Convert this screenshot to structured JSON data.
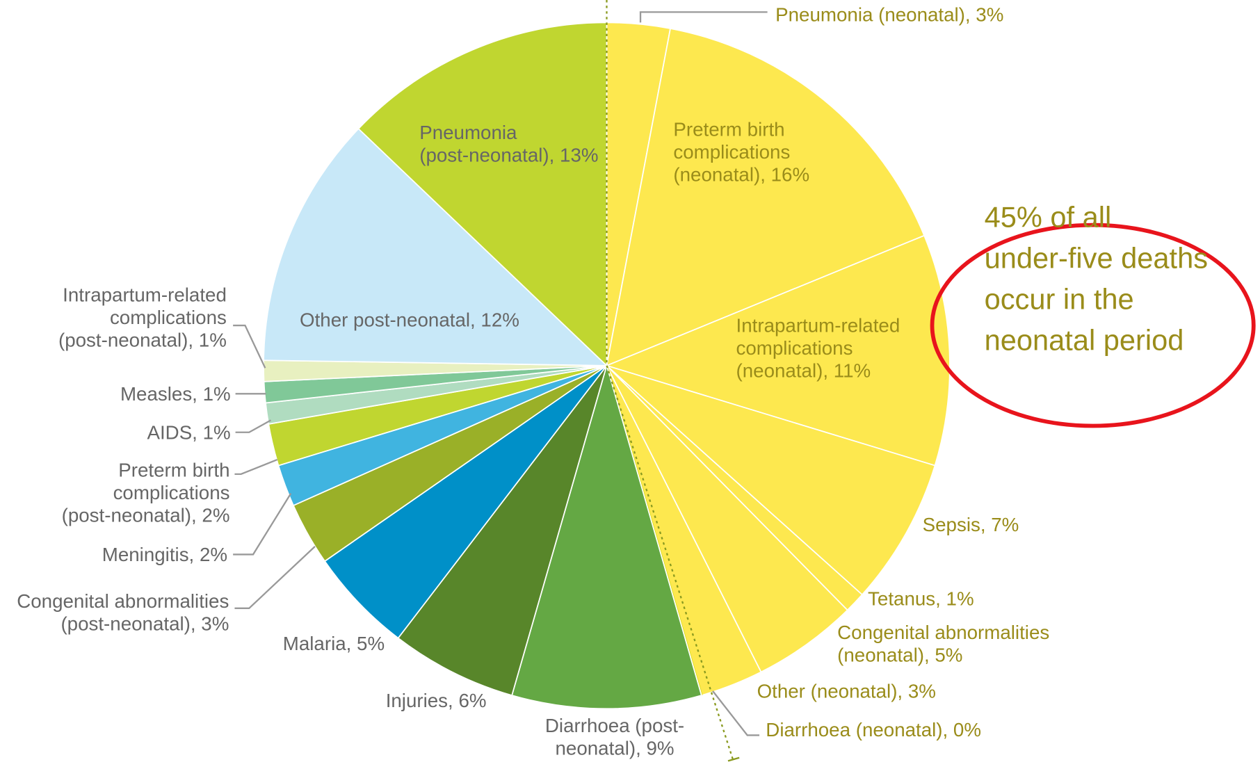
{
  "chart_data": {
    "type": "pie",
    "value_labels": [
      [
        "Pneumonia (neonatal), 3%"
      ],
      [
        "Preterm birth",
        "complications",
        "(neonatal), 16%"
      ],
      [
        "Intrapartum-related",
        "complications",
        "(neonatal), 11%"
      ],
      [
        "Sepsis, 7%"
      ],
      [
        "Tetanus, 1%"
      ],
      [
        "Congenital abnormalities",
        "(neonatal), 5%"
      ],
      [
        "Other (neonatal), 3%"
      ],
      [
        "Diarrhoea (neonatal), 0%"
      ],
      [
        "Diarrhoea (post-",
        "neonatal), 9%"
      ],
      [
        "Injuries, 6%"
      ],
      [
        "Malaria, 5%"
      ],
      [
        "Congenital abnormalities",
        "(post-neonatal), 3%"
      ],
      [
        "Meningitis, 2%"
      ],
      [
        "Preterm birth",
        "complications",
        "(post-neonatal), 2%"
      ],
      [
        "AIDS, 1%"
      ],
      [
        "Measles, 1%"
      ],
      [
        "Intrapartum-related",
        "complications",
        "(post-neonatal), 1%"
      ],
      [
        "Other post-neonatal, 12%"
      ],
      [
        "Pneumonia",
        "(post-neonatal), 13%"
      ]
    ],
    "values": [
      3,
      16,
      11,
      7,
      1,
      5,
      3,
      0,
      9,
      6,
      5,
      3,
      2,
      2,
      1,
      1,
      1,
      12,
      13
    ],
    "colors": [
      "#fde84f",
      "#fde84f",
      "#fde84f",
      "#fde84f",
      "#fde84f",
      "#fde84f",
      "#fde84f",
      "#d8dc20",
      "#64a844",
      "#58862a",
      "#0090c8",
      "#9ab028",
      "#40b4e0",
      "#c0d630",
      "#b0dcc0",
      "#80c898",
      "#e8f0c0",
      "#c8e8f8",
      "#c0d630"
    ],
    "annotation": [
      "45% of all",
      "under-five deaths",
      "occur in the",
      "neonatal period"
    ]
  }
}
